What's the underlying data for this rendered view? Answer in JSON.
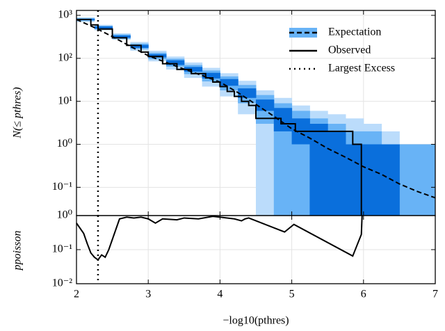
{
  "chart_data": [
    {
      "type": "line",
      "ylabel": "N(≤ pthres)",
      "log_y": true,
      "grid": true,
      "legend": "upper right",
      "xlim": [
        2,
        7
      ],
      "ylim": [
        0.022,
        1300
      ],
      "yticks": [
        {
          "value": 0.1,
          "label": "10⁻¹"
        },
        {
          "value": 1,
          "label": "10⁰"
        },
        {
          "value": 10,
          "label": "10¹"
        },
        {
          "value": 100,
          "label": "10²"
        },
        {
          "value": 1000,
          "label": "10³"
        }
      ],
      "x": [
        2,
        2.25,
        2.5,
        2.75,
        3,
        3.25,
        3.5,
        3.75,
        4,
        4.25,
        4.5,
        4.75,
        5,
        5.25,
        5.5,
        5.75,
        6,
        6.25,
        6.5,
        6.75,
        7
      ],
      "bands": [
        {
          "color": "#bbdcfb",
          "lower": [
            700,
            450,
            270,
            150,
            85,
            55,
            35,
            22,
            13,
            5,
            0,
            0,
            0,
            0,
            0,
            0,
            0,
            0,
            0,
            0,
            0
          ],
          "upper": [
            900,
            600,
            380,
            240,
            150,
            110,
            80,
            60,
            45,
            30,
            18,
            12,
            8,
            6,
            5,
            4,
            3,
            2,
            1,
            1,
            1
          ]
        },
        {
          "color": "#68b3f6",
          "lower": [
            740,
            475,
            285,
            165,
            95,
            64,
            43,
            29,
            18,
            9,
            3,
            0,
            0,
            0,
            0,
            0,
            0,
            0,
            0,
            0,
            0
          ],
          "upper": [
            860,
            570,
            360,
            220,
            135,
            98,
            70,
            52,
            38,
            24,
            14,
            9,
            6,
            4,
            3,
            2,
            2,
            1,
            1,
            1,
            1
          ]
        },
        {
          "color": "#0a6fdc",
          "lower": [
            770,
            490,
            300,
            175,
            105,
            70,
            49,
            34,
            23,
            12,
            6,
            2,
            1,
            0,
            0,
            0,
            0,
            0,
            0,
            0,
            0
          ],
          "upper": [
            830,
            550,
            340,
            205,
            125,
            90,
            63,
            46,
            33,
            20,
            11,
            7,
            4,
            3,
            2,
            1,
            1,
            1,
            0,
            0,
            0
          ]
        }
      ],
      "series": [
        {
          "name": "Expectation",
          "color": "#000000",
          "style": "dashed",
          "values": [
            800,
            520,
            320,
            190,
            115,
            80,
            56,
            40,
            28,
            16,
            8.5,
            4.5,
            2.3,
            1.4,
            0.8,
            0.5,
            0.3,
            0.2,
            0.12,
            0.08,
            0.057
          ]
        },
        {
          "name": "Observed",
          "color": "#000000",
          "style": "step",
          "x": [
            2,
            2.2,
            2.3,
            2.5,
            2.7,
            2.9,
            3,
            3.2,
            3.4,
            3.6,
            3.8,
            3.9,
            4,
            4.1,
            4.2,
            4.3,
            4.4,
            4.5,
            4.85,
            5.05,
            5.85,
            5.97
          ],
          "values": [
            800,
            600,
            480,
            300,
            200,
            140,
            110,
            75,
            55,
            44,
            35,
            28,
            22,
            17,
            13,
            10,
            8,
            4,
            3,
            2,
            1,
            0
          ]
        }
      ],
      "vlines": [
        {
          "name": "Largest Excess",
          "x": 2.3,
          "color": "#000000",
          "style": "dotted"
        }
      ]
    },
    {
      "type": "line",
      "ylabel": "ppoisson",
      "xlabel": "−log10(pthres)",
      "log_y": true,
      "grid": true,
      "xlim": [
        2,
        7
      ],
      "xticks": [
        2,
        3,
        4,
        5,
        6,
        7
      ],
      "ylim": [
        0.01,
        1
      ],
      "yticks": [
        {
          "value": 0.01,
          "label": "10⁻²"
        },
        {
          "value": 0.1,
          "label": "10⁻¹"
        },
        {
          "value": 1,
          "label": "10⁰"
        }
      ],
      "series": [
        {
          "color": "#000000",
          "style": "solid",
          "x": [
            2,
            2.1,
            2.15,
            2.2,
            2.25,
            2.3,
            2.35,
            2.4,
            2.45,
            2.5,
            2.55,
            2.6,
            2.7,
            2.8,
            2.9,
            3,
            3.1,
            3.2,
            3.4,
            3.5,
            3.7,
            3.9,
            4,
            4.2,
            4.3,
            4.35,
            4.4,
            4.9,
            5.03,
            5.85,
            5.97,
            5.98
          ],
          "values": [
            0.6,
            0.3,
            0.15,
            0.08,
            0.06,
            0.05,
            0.07,
            0.06,
            0.1,
            0.2,
            0.4,
            0.8,
            0.9,
            0.85,
            0.9,
            0.8,
            0.6,
            0.8,
            0.75,
            0.85,
            0.8,
            0.95,
            0.9,
            0.8,
            0.7,
            0.8,
            0.85,
            0.33,
            0.55,
            0.065,
            0.28,
            1
          ]
        }
      ]
    }
  ]
}
